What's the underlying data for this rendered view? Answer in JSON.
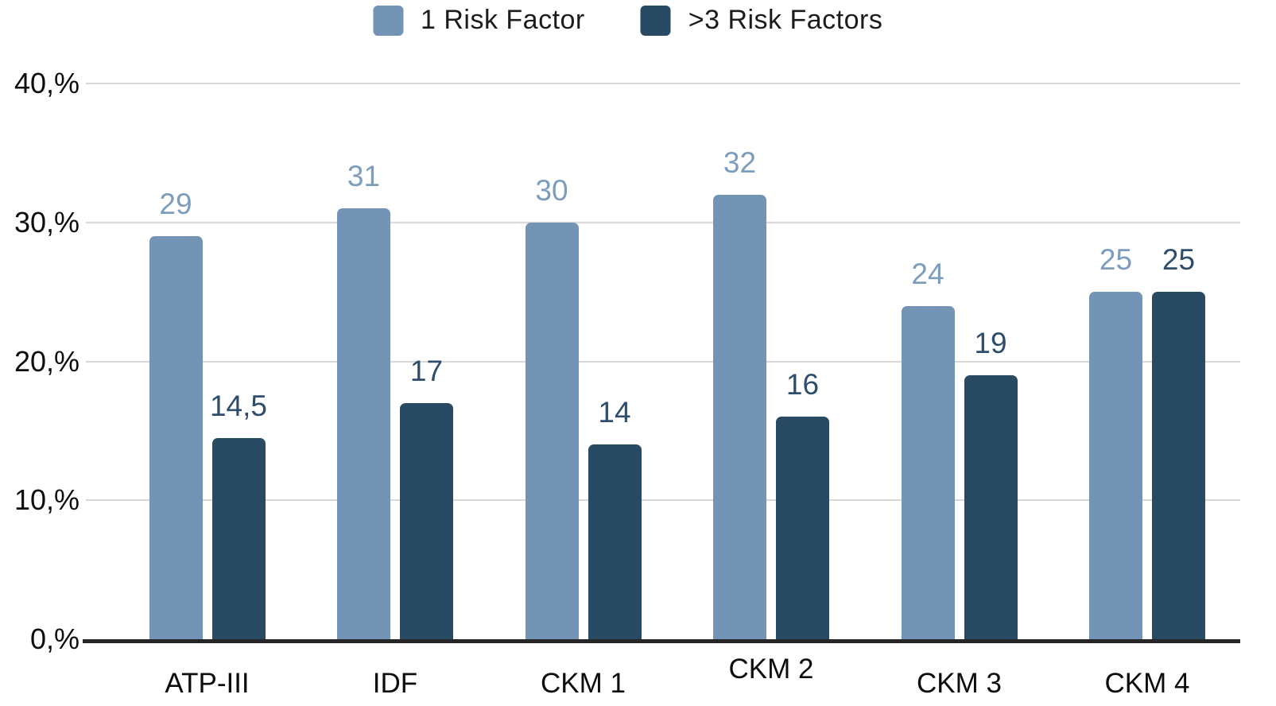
{
  "chart_data": {
    "type": "bar",
    "title": "",
    "xlabel": "",
    "ylabel": "",
    "categories": [
      "ATP-III",
      "IDF",
      "CKM 1",
      "CKM 2",
      "CKM 3",
      "CKM 4"
    ],
    "series": [
      {
        "name": "1 Risk Factor",
        "color": "#7394b4",
        "label_color": "#7d9dbc",
        "values": [
          29,
          31,
          30,
          32,
          24,
          25
        ],
        "labels": [
          "29",
          "31",
          "30",
          "32",
          "24",
          "25"
        ]
      },
      {
        "name": ">3 Risk Factors",
        "color": "#294a63",
        "label_color": "#2e4e6b",
        "values": [
          14.5,
          17,
          14,
          16,
          19,
          25
        ],
        "labels": [
          "14,5",
          "17",
          "14",
          "16",
          "19",
          "25"
        ]
      }
    ],
    "y_axis": {
      "ylim": [
        0,
        40
      ],
      "ticks": [
        {
          "value": 0,
          "label": "0,%"
        },
        {
          "value": 10,
          "label": "10,%"
        },
        {
          "value": 20,
          "label": "20,%"
        },
        {
          "value": 30,
          "label": "30,%"
        },
        {
          "value": 40,
          "label": "40,%"
        }
      ]
    },
    "legend_position": "top",
    "grid": true,
    "colors": {
      "background": "#ffffff",
      "gridline": "#d8d8d8",
      "axis": "#262626",
      "tick_text": "#0d0d0d",
      "category_text": "#0d0d0d"
    }
  }
}
